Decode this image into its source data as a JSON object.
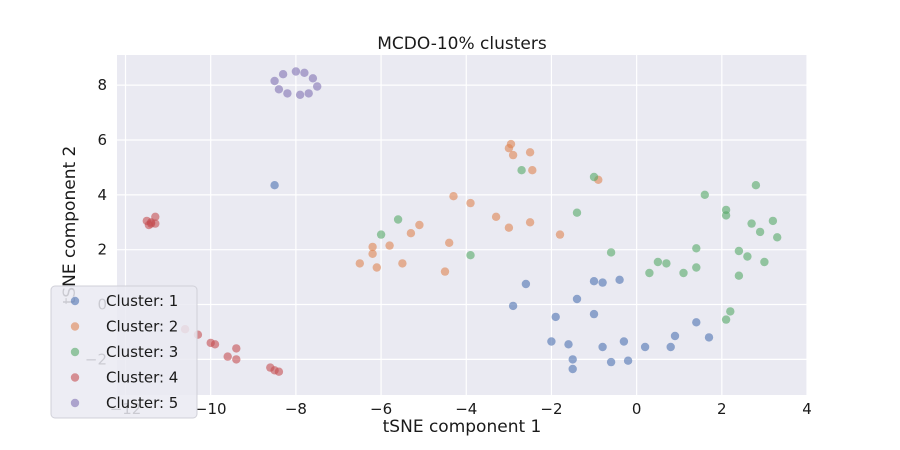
{
  "chart_data": {
    "type": "scatter",
    "title": "MCDO-10% clusters",
    "xlabel": "tSNE component 1",
    "ylabel": "tSNE component 2",
    "xlim": [
      -12.2,
      4.0
    ],
    "ylim": [
      -3.3,
      9.1
    ],
    "x_ticks": [
      -12,
      -10,
      -8,
      -6,
      -4,
      -2,
      0,
      2,
      4
    ],
    "y_ticks": [
      -2,
      0,
      2,
      4,
      6,
      8
    ],
    "grid": true,
    "legend_position": "bottom-left",
    "series": [
      {
        "name": "Cluster: 1",
        "color": "#4c72b0",
        "points": [
          [
            -8.5,
            4.35
          ],
          [
            -2.6,
            0.75
          ],
          [
            -2.9,
            -0.05
          ],
          [
            -1.4,
            0.2
          ],
          [
            -1.0,
            0.85
          ],
          [
            -0.8,
            0.8
          ],
          [
            -0.4,
            0.9
          ],
          [
            -1.9,
            -0.45
          ],
          [
            -1.0,
            -0.35
          ],
          [
            -2.0,
            -1.35
          ],
          [
            -1.6,
            -1.45
          ],
          [
            -1.5,
            -2.0
          ],
          [
            -1.5,
            -2.35
          ],
          [
            -0.8,
            -1.55
          ],
          [
            -0.6,
            -2.1
          ],
          [
            -0.3,
            -1.35
          ],
          [
            -0.2,
            -2.05
          ],
          [
            0.2,
            -1.55
          ],
          [
            0.8,
            -1.55
          ],
          [
            0.9,
            -1.15
          ],
          [
            1.4,
            -0.65
          ],
          [
            1.7,
            -1.2
          ]
        ]
      },
      {
        "name": "Cluster: 2",
        "color": "#dd8452",
        "points": [
          [
            -6.5,
            1.5
          ],
          [
            -6.2,
            2.1
          ],
          [
            -6.1,
            1.35
          ],
          [
            -6.2,
            1.85
          ],
          [
            -5.8,
            2.15
          ],
          [
            -5.5,
            1.5
          ],
          [
            -5.3,
            2.6
          ],
          [
            -5.1,
            2.9
          ],
          [
            -4.5,
            1.2
          ],
          [
            -4.4,
            2.25
          ],
          [
            -4.3,
            3.95
          ],
          [
            -3.9,
            3.7
          ],
          [
            -3.3,
            3.2
          ],
          [
            -3.0,
            2.8
          ],
          [
            -3.0,
            5.7
          ],
          [
            -2.9,
            5.45
          ],
          [
            -2.95,
            5.85
          ],
          [
            -2.5,
            5.55
          ],
          [
            -2.45,
            4.9
          ],
          [
            -2.5,
            3.0
          ],
          [
            -1.8,
            2.55
          ],
          [
            -0.9,
            4.55
          ]
        ]
      },
      {
        "name": "Cluster: 3",
        "color": "#55a868",
        "points": [
          [
            -6.0,
            2.55
          ],
          [
            -5.6,
            3.1
          ],
          [
            -3.9,
            1.8
          ],
          [
            -2.7,
            4.9
          ],
          [
            -1.4,
            3.35
          ],
          [
            -1.0,
            4.65
          ],
          [
            -0.6,
            1.9
          ],
          [
            0.3,
            1.15
          ],
          [
            0.5,
            1.55
          ],
          [
            0.7,
            1.5
          ],
          [
            1.1,
            1.15
          ],
          [
            1.4,
            1.35
          ],
          [
            1.4,
            2.05
          ],
          [
            1.6,
            4.0
          ],
          [
            2.1,
            3.25
          ],
          [
            2.1,
            3.45
          ],
          [
            2.1,
            -0.55
          ],
          [
            2.2,
            -0.25
          ],
          [
            2.4,
            1.95
          ],
          [
            2.4,
            1.05
          ],
          [
            2.6,
            1.75
          ],
          [
            2.7,
            2.95
          ],
          [
            2.8,
            4.35
          ],
          [
            2.9,
            2.65
          ],
          [
            3.0,
            1.55
          ],
          [
            3.2,
            3.05
          ],
          [
            3.3,
            2.45
          ]
        ]
      },
      {
        "name": "Cluster: 4",
        "color": "#c44e52",
        "points": [
          [
            -11.5,
            3.05
          ],
          [
            -11.4,
            2.95
          ],
          [
            -11.3,
            3.2
          ],
          [
            -11.4,
            3.0
          ],
          [
            -11.3,
            2.95
          ],
          [
            -11.45,
            2.9
          ],
          [
            -10.6,
            -0.9
          ],
          [
            -10.3,
            -1.1
          ],
          [
            -10.0,
            -1.4
          ],
          [
            -9.9,
            -1.45
          ],
          [
            -9.6,
            -1.9
          ],
          [
            -9.4,
            -1.6
          ],
          [
            -9.4,
            -2.0
          ],
          [
            -8.6,
            -2.3
          ],
          [
            -8.5,
            -2.4
          ],
          [
            -8.4,
            -2.45
          ]
        ]
      },
      {
        "name": "Cluster: 5",
        "color": "#8172b2",
        "points": [
          [
            -8.5,
            8.15
          ],
          [
            -8.4,
            7.85
          ],
          [
            -8.3,
            8.4
          ],
          [
            -8.2,
            7.7
          ],
          [
            -8.0,
            8.5
          ],
          [
            -7.9,
            7.65
          ],
          [
            -7.8,
            8.45
          ],
          [
            -7.7,
            7.7
          ],
          [
            -7.6,
            8.25
          ],
          [
            -7.5,
            7.95
          ]
        ]
      }
    ]
  }
}
